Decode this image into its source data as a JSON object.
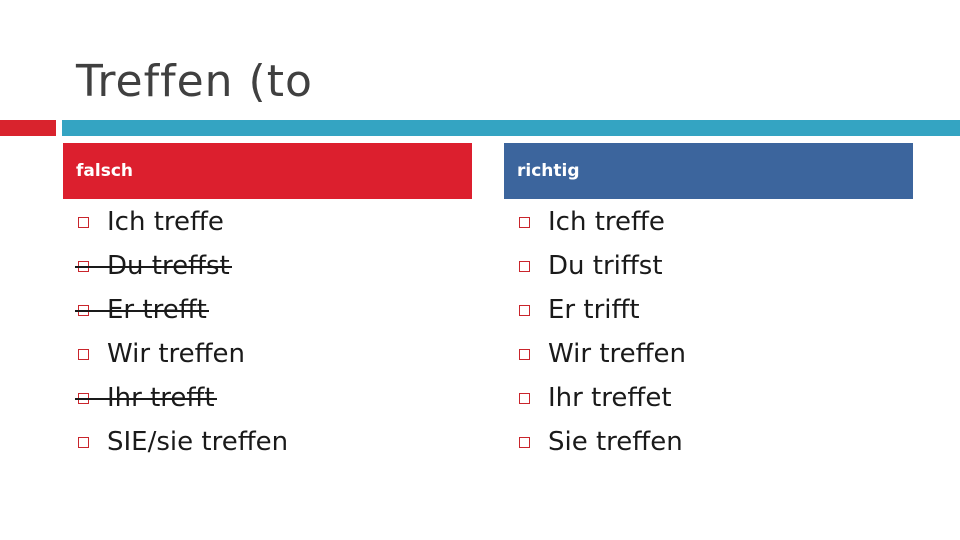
{
  "slide": {
    "title": "Treffen (to",
    "colors": {
      "title": "#404040",
      "accent_red": "#d9232d",
      "accent_blue": "#34a4c2",
      "header_red": "#dc1f2e",
      "header_blue": "#3c659d",
      "bullet": "#c9252c"
    }
  },
  "columns": {
    "left": {
      "header": "falsch",
      "items": [
        {
          "text": "Ich treffe",
          "struck": false
        },
        {
          "text": "Du treffst",
          "struck": true
        },
        {
          "text": "Er trefft",
          "struck": true
        },
        {
          "text": "Wir treffen",
          "struck": false
        },
        {
          "text": "Ihr trefft",
          "struck": true
        },
        {
          "text": "SIE/sie treffen",
          "struck": false
        }
      ]
    },
    "right": {
      "header": "richtig",
      "items": [
        {
          "text": "Ich treffe",
          "struck": false
        },
        {
          "text": "Du triffst",
          "struck": false
        },
        {
          "text": "Er trifft",
          "struck": false
        },
        {
          "text": "Wir treffen",
          "struck": false
        },
        {
          "text": "Ihr treffet",
          "struck": false
        },
        {
          "text": "Sie treffen",
          "struck": false
        }
      ]
    }
  }
}
